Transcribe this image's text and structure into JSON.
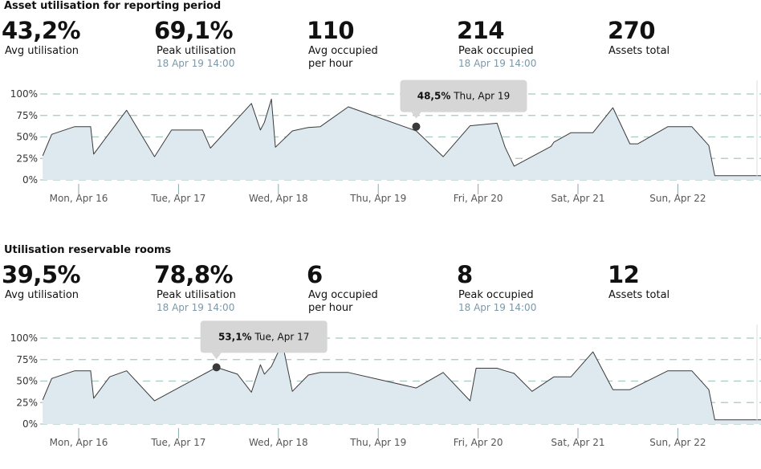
{
  "colors": {
    "area_fill": "#dde9ef",
    "line": "#3a3a3a",
    "grid": "#a8c6c2",
    "tooltip_bg": "#d6d6d6",
    "sub_text": "#7d98a6"
  },
  "section1": {
    "title": "Asset utilisation for reporting period",
    "stats": {
      "avg_utilisation": {
        "value": "43,2%",
        "label": "Avg utilisation"
      },
      "peak_utilisation": {
        "value": "69,1%",
        "label": "Peak utilisation",
        "sub": "18 Apr 19 14:00"
      },
      "avg_occupied": {
        "value": "110",
        "label_line1": "Avg occupied",
        "label_line2": "per hour"
      },
      "peak_occupied": {
        "value": "214",
        "label": "Peak occupied",
        "sub": "18 Apr 19 14:00"
      },
      "assets_total": {
        "value": "270",
        "label": "Assets total"
      }
    },
    "tooltip": {
      "value": "48,5%",
      "date": "Thu, Apr 19",
      "x": 3.38,
      "y": 62
    }
  },
  "section2": {
    "title": "Utilisation reservable rooms",
    "stats": {
      "avg_utilisation": {
        "value": "39,5%",
        "label": "Avg utilisation"
      },
      "peak_utilisation": {
        "value": "78,8%",
        "label": "Peak utilisation",
        "sub": "18 Apr 19 14:00"
      },
      "avg_occupied": {
        "value": "6",
        "label_line1": "Avg occupied",
        "label_line2": "per hour"
      },
      "peak_occupied": {
        "value": "8",
        "label": "Peak occupied",
        "sub": "18 Apr 19 14:00"
      },
      "assets_total": {
        "value": "12",
        "label": "Assets total"
      }
    },
    "tooltip": {
      "value": "53,1%",
      "date": "Tue, Apr 17",
      "x": 1.38,
      "y": 66
    }
  },
  "chart_data": [
    {
      "type": "area",
      "title": "Asset utilisation for reporting period",
      "x_categories": [
        "Mon, Apr 16",
        "Tue, Apr 17",
        "Wed, Apr 18",
        "Thu, Apr 19",
        "Fri, Apr 20",
        "Sat, Apr 21",
        "Sun, Apr 22"
      ],
      "x_range": [
        -0.36,
        6.84
      ],
      "yticks": [
        "0%",
        "25%",
        "50%",
        "75%",
        "100%"
      ],
      "ylim": [
        0,
        100
      ],
      "grid": true,
      "series": [
        {
          "x": [
            -0.36,
            -0.27,
            -0.04,
            0.12,
            0.15,
            0.31,
            0.48,
            0.76,
            0.93,
            1.24,
            1.32,
            1.73,
            1.82,
            1.86,
            1.93,
            1.97,
            2.14,
            2.3,
            2.42,
            2.7,
            3.38,
            3.65,
            3.92,
            4.19,
            4.27,
            4.36,
            4.73,
            4.76,
            4.93,
            5.15,
            5.35,
            5.52,
            5.6,
            5.9,
            6.14,
            6.31,
            6.37,
            6.52,
            6.84
          ],
          "y": [
            28,
            53,
            62,
            62,
            30,
            55,
            81,
            27,
            58,
            58,
            37,
            89,
            58,
            67,
            94,
            38,
            57,
            61,
            62,
            85,
            57,
            27,
            63,
            66,
            38,
            16,
            39,
            44,
            55,
            55,
            84,
            42,
            42,
            62,
            62,
            40,
            5,
            5,
            5
          ]
        }
      ]
    },
    {
      "type": "area",
      "title": "Utilisation reservable rooms",
      "x_categories": [
        "Mon, Apr 16",
        "Tue, Apr 17",
        "Wed, Apr 18",
        "Thu, Apr 19",
        "Fri, Apr 20",
        "Sat, Apr 21",
        "Sun, Apr 22"
      ],
      "x_range": [
        -0.36,
        6.84
      ],
      "yticks": [
        "0%",
        "25%",
        "50%",
        "75%",
        "100%"
      ],
      "ylim": [
        0,
        100
      ],
      "grid": true,
      "series": [
        {
          "x": [
            -0.36,
            -0.27,
            -0.04,
            0.12,
            0.15,
            0.31,
            0.48,
            0.76,
            1.38,
            1.59,
            1.73,
            1.82,
            1.86,
            1.93,
            2.04,
            2.14,
            2.3,
            2.42,
            2.7,
            3.38,
            3.65,
            3.92,
            3.98,
            4.19,
            4.27,
            4.36,
            4.54,
            4.76,
            4.93,
            5.15,
            5.35,
            5.52,
            5.9,
            6.14,
            6.31,
            6.37,
            6.52,
            6.84
          ],
          "y": [
            28,
            53,
            62,
            62,
            30,
            55,
            62,
            27,
            66,
            58,
            37,
            69,
            58,
            67,
            94,
            38,
            57,
            60,
            60,
            42,
            60,
            27,
            65,
            65,
            62,
            59,
            38,
            55,
            55,
            84,
            40,
            40,
            62,
            62,
            40,
            5,
            5,
            5
          ]
        }
      ]
    }
  ]
}
